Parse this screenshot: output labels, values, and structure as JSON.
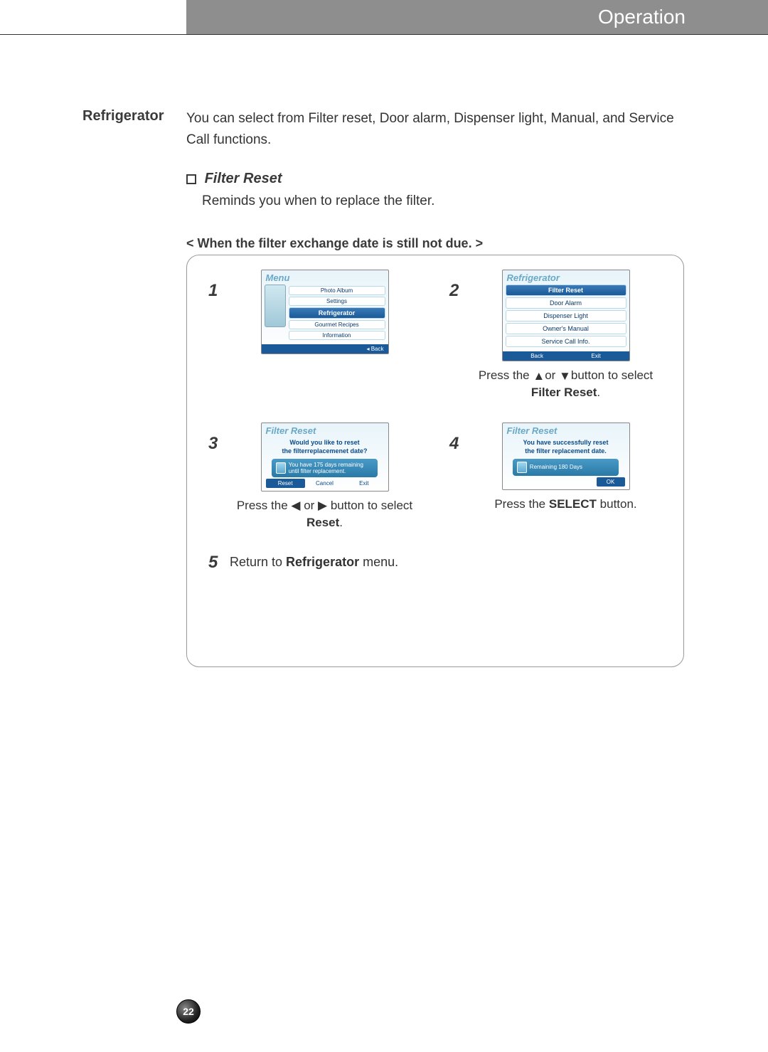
{
  "header": {
    "title": "Operation"
  },
  "sidebar": {
    "label": "Refrigerator"
  },
  "intro": "You can select from Filter reset, Door alarm, Dispenser light, Manual, and Service Call functions.",
  "section": {
    "title": "Filter Reset",
    "desc": "Reminds you when to replace the filter."
  },
  "condition": "< When the filter exchange date is still not due. >",
  "screens": {
    "s1": {
      "header": "Menu",
      "items": [
        "Photo Album",
        "Settings",
        "Refrigerator",
        "Gourmet Recipes",
        "Information"
      ],
      "selected_index": 2,
      "footer": "◂ Back"
    },
    "s2": {
      "header": "Refrigerator",
      "items": [
        "Filter Reset",
        "Door Alarm",
        "Dispenser Light",
        "Owner's Manual",
        "Service Call Info."
      ],
      "selected_index": 0,
      "footer_left": "Back",
      "footer_right": "Exit"
    },
    "s3": {
      "header": "Filter Reset",
      "line1": "Would you like to reset",
      "line2": "the filterreplacemenet date?",
      "banner1": "You have 175 days remaining",
      "banner2": "until filter replacement.",
      "btn_reset": "Reset",
      "btn_cancel": "Cancel",
      "btn_exit": "Exit"
    },
    "s4": {
      "header": "Filter Reset",
      "line1": "You have successfully reset",
      "line2": "the filter replacement date.",
      "banner": "Remaining 180 Days",
      "btn_ok": "OK"
    }
  },
  "captions": {
    "c2a": "Press the ",
    "c2b": "or ",
    "c2c": "button to select ",
    "c2_bold": "Filter Reset",
    "c3a": "Press the ",
    "c3b": " or ",
    "c3c": " button to select ",
    "c3_bold": "Reset",
    "c4a": "Press the ",
    "c4_bold": "SELECT",
    "c4b": " button."
  },
  "step5a": "Return to ",
  "step5_bold": "Refrigerator",
  "step5b": " menu.",
  "page_number": "22",
  "colors": {
    "header_bg": "#8e8e8e",
    "accent_blue": "#1a5a98",
    "text": "#333333"
  }
}
